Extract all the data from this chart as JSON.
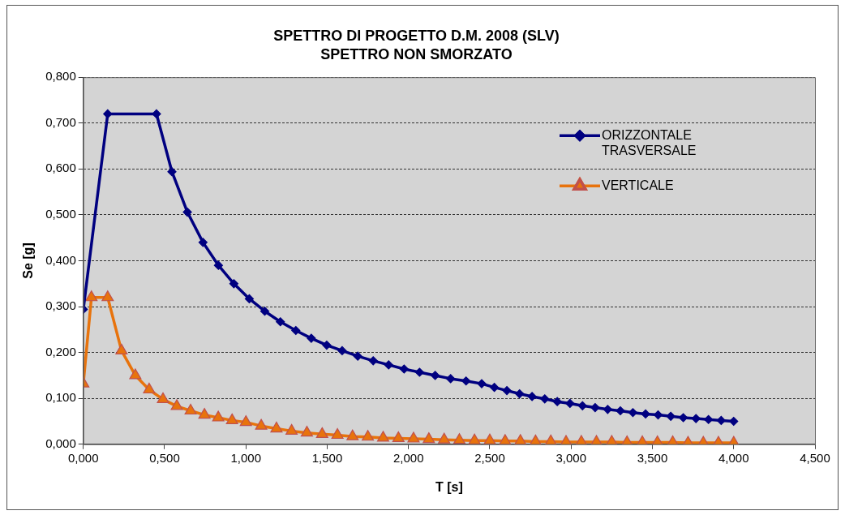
{
  "chart_data": {
    "type": "line",
    "title": "SPETTRO DI PROGETTO D.M. 2008 (SLV)",
    "subtitle": "SPETTRO NON SMORZATO",
    "xlabel": "T [s]",
    "ylabel": "Se [g]",
    "xlim": [
      0,
      4.5
    ],
    "xticks": [
      {
        "value": 0,
        "label": "0,000"
      },
      {
        "value": 0.5,
        "label": "0,500"
      },
      {
        "value": 1,
        "label": "1,000"
      },
      {
        "value": 1.5,
        "label": "1,500"
      },
      {
        "value": 2,
        "label": "2,000"
      },
      {
        "value": 2.5,
        "label": "2,500"
      },
      {
        "value": 3,
        "label": "3,000"
      },
      {
        "value": 3.5,
        "label": "3,500"
      },
      {
        "value": 4,
        "label": "4,000"
      },
      {
        "value": 4.5,
        "label": "4,500"
      }
    ],
    "ylim": [
      0,
      0.8
    ],
    "yticks": [
      {
        "value": 0,
        "label": "0,000"
      },
      {
        "value": 0.1,
        "label": "0,100"
      },
      {
        "value": 0.2,
        "label": "0,200"
      },
      {
        "value": 0.3,
        "label": "0,300"
      },
      {
        "value": 0.4,
        "label": "0,400"
      },
      {
        "value": 0.5,
        "label": "0,500"
      },
      {
        "value": 0.6,
        "label": "0,600"
      },
      {
        "value": 0.7,
        "label": "0,700"
      },
      {
        "value": 0.8,
        "label": "0,800"
      }
    ],
    "grid": "y",
    "legend": "top right",
    "line_style": "solid",
    "series": [
      {
        "name": "ORIZZONTALE TRASVERSALE",
        "color": "#000080",
        "marker": "diamond",
        "x": [
          0,
          0.15,
          0.45,
          0.545,
          0.64,
          0.736,
          0.831,
          0.926,
          1.021,
          1.116,
          1.212,
          1.307,
          1.402,
          1.497,
          1.592,
          1.688,
          1.783,
          1.878,
          1.973,
          2.068,
          2.164,
          2.259,
          2.354,
          2.45,
          2.528,
          2.605,
          2.683,
          2.76,
          2.838,
          2.915,
          2.993,
          3.07,
          3.148,
          3.225,
          3.303,
          3.38,
          3.458,
          3.535,
          3.613,
          3.69,
          3.768,
          3.845,
          3.923,
          4.0
        ],
        "values": [
          0.294,
          0.72,
          0.72,
          0.594,
          0.506,
          0.44,
          0.39,
          0.35,
          0.317,
          0.29,
          0.267,
          0.248,
          0.231,
          0.216,
          0.204,
          0.192,
          0.182,
          0.173,
          0.164,
          0.157,
          0.15,
          0.143,
          0.138,
          0.132,
          0.124,
          0.117,
          0.11,
          0.104,
          0.099,
          0.093,
          0.089,
          0.084,
          0.08,
          0.076,
          0.073,
          0.069,
          0.066,
          0.064,
          0.061,
          0.058,
          0.056,
          0.054,
          0.052,
          0.05
        ]
      },
      {
        "name": "VERTICALE",
        "color": "#e8730c",
        "marker": "triangle",
        "x": [
          0,
          0.05,
          0.15,
          0.235,
          0.32,
          0.405,
          0.49,
          0.575,
          0.66,
          0.745,
          0.83,
          0.915,
          1.0,
          1.094,
          1.188,
          1.281,
          1.375,
          1.469,
          1.563,
          1.656,
          1.75,
          1.844,
          1.938,
          2.031,
          2.125,
          2.219,
          2.313,
          2.406,
          2.5,
          2.594,
          2.688,
          2.781,
          2.875,
          2.969,
          3.063,
          3.156,
          3.25,
          3.344,
          3.438,
          3.531,
          3.625,
          3.719,
          3.813,
          3.906,
          4.0
        ],
        "values": [
          0.132,
          0.32,
          0.32,
          0.204,
          0.15,
          0.119,
          0.098,
          0.083,
          0.073,
          0.064,
          0.058,
          0.052,
          0.048,
          0.04,
          0.034,
          0.029,
          0.025,
          0.022,
          0.02,
          0.017,
          0.016,
          0.014,
          0.013,
          0.012,
          0.011,
          0.01,
          0.009,
          0.008,
          0.008,
          0.007,
          0.007,
          0.006,
          0.006,
          0.005,
          0.005,
          0.005,
          0.005,
          0.004,
          0.004,
          0.004,
          0.004,
          0.003,
          0.003,
          0.003,
          0.003
        ]
      }
    ]
  }
}
